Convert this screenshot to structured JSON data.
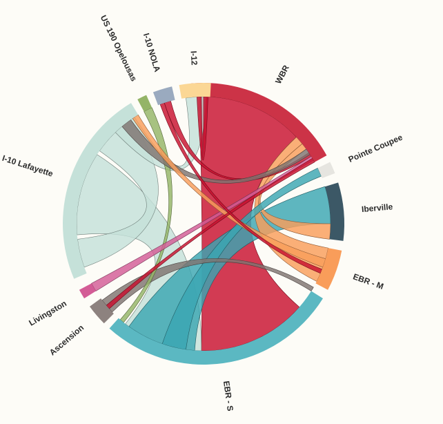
{
  "chart_data": {
    "type": "chord",
    "title": "",
    "groups": [
      {
        "name": "WBR",
        "color": "#cc3347",
        "start": -5,
        "end": 61
      },
      {
        "name": "Pointe Coupee",
        "color": "#e6e5e0",
        "start": 64,
        "end": 69
      },
      {
        "name": "Iberville",
        "color": "#3c5866",
        "start": 73,
        "end": 97
      },
      {
        "name": "EBR - M",
        "color": "#f99d5a",
        "start": 101,
        "end": 118
      },
      {
        "name": "EBR - S",
        "color": "#5bb8c2",
        "start": 122,
        "end": 222
      },
      {
        "name": "Ascension",
        "color": "#8d827f",
        "start": 225,
        "end": 234
      },
      {
        "name": "Livingston",
        "color": "#d35c96",
        "start": 238,
        "end": 242
      },
      {
        "name": "I-10 Lafayette",
        "color": "#c5e1d9",
        "start": 247,
        "end": 329
      },
      {
        "name": "US 190 Opelousas",
        "color": "#94b467",
        "start": 332,
        "end": 336
      },
      {
        "name": "I-10 NOLA",
        "color": "#9aaabf",
        "start": 339,
        "end": 347
      },
      {
        "name": "I-12",
        "color": "#fbd795",
        "start": 350,
        "end": 363
      }
    ],
    "ribbons": [
      {
        "source": "WBR",
        "target": "EBR - S",
        "color": "#c8102e",
        "s": [
          -2,
          47
        ],
        "t": [
          131,
          181
        ]
      },
      {
        "source": "I-10 Lafayette",
        "target": "EBR - S",
        "color": "#c5e1d9",
        "s": [
          265,
          303
        ],
        "t": [
          181,
          218
        ]
      },
      {
        "source": "Iberville",
        "target": "EBR - S",
        "color": "#3aa6b2",
        "s": [
          73,
          90
        ],
        "t": [
          184,
          216
        ]
      },
      {
        "source": "WBR",
        "target": "EBR - M",
        "color": "#f99d5a",
        "s": [
          47,
          51
        ],
        "t": [
          101,
          117
        ]
      },
      {
        "source": "WBR",
        "target": "Iberville",
        "color": "#f99d5a",
        "s": [
          51,
          54
        ],
        "t": [
          90,
          97
        ]
      },
      {
        "source": "I-10 Lafayette",
        "target": "I-10 Lafayette",
        "color": "#c5e1d9",
        "s": [
          250,
          263
        ],
        "t": [
          305,
          325
        ]
      },
      {
        "source": "I-10 Lafayette",
        "target": "I-12",
        "color": "#c5e1d9",
        "s": [
          316,
          327
        ],
        "t": [
          352,
          361
        ]
      },
      {
        "source": "WBR",
        "target": "I-12",
        "color": "#c8102e",
        "s": [
          -3,
          -1
        ],
        "t": [
          360,
          362
        ]
      },
      {
        "source": "WBR",
        "target": "I-10 NOLA",
        "color": "#c8102e",
        "s": [
          56,
          58
        ],
        "t": [
          342,
          345
        ]
      },
      {
        "source": "Pointe Coupee",
        "target": "EBR - S",
        "color": "#3aa6b2",
        "s": [
          64,
          68
        ],
        "t": [
          188,
          199
        ]
      },
      {
        "source": "EBR - S",
        "target": "Ascension",
        "color": "#7f7470",
        "s": [
          120,
          122
        ],
        "t": [
          226,
          233
        ]
      },
      {
        "source": "US 190 Opelousas",
        "target": "EBR - S",
        "color": "#94b467",
        "s": [
          332,
          336
        ],
        "t": [
          219,
          221
        ]
      },
      {
        "source": "Livingston",
        "target": "WBR",
        "color": "#d35c96",
        "s": [
          238,
          242
        ],
        "t": [
          58,
          60
        ]
      },
      {
        "source": "I-10 Lafayette",
        "target": "WBR",
        "color": "#7f7470",
        "s": [
          320,
          325
        ],
        "t": [
          54,
          57
        ]
      },
      {
        "source": "I-10 Lafayette",
        "target": "EBR - M",
        "color": "#f99d5a",
        "s": [
          326,
          329
        ],
        "t": [
          106,
          110
        ]
      },
      {
        "source": "Ascension",
        "target": "WBR",
        "color": "#c8102e",
        "s": [
          228,
          230
        ],
        "t": [
          59,
          61
        ]
      },
      {
        "source": "I-10 NOLA",
        "target": "EBR - M",
        "color": "#c8102e",
        "s": [
          340,
          342
        ],
        "t": [
          111,
          113
        ]
      }
    ]
  }
}
